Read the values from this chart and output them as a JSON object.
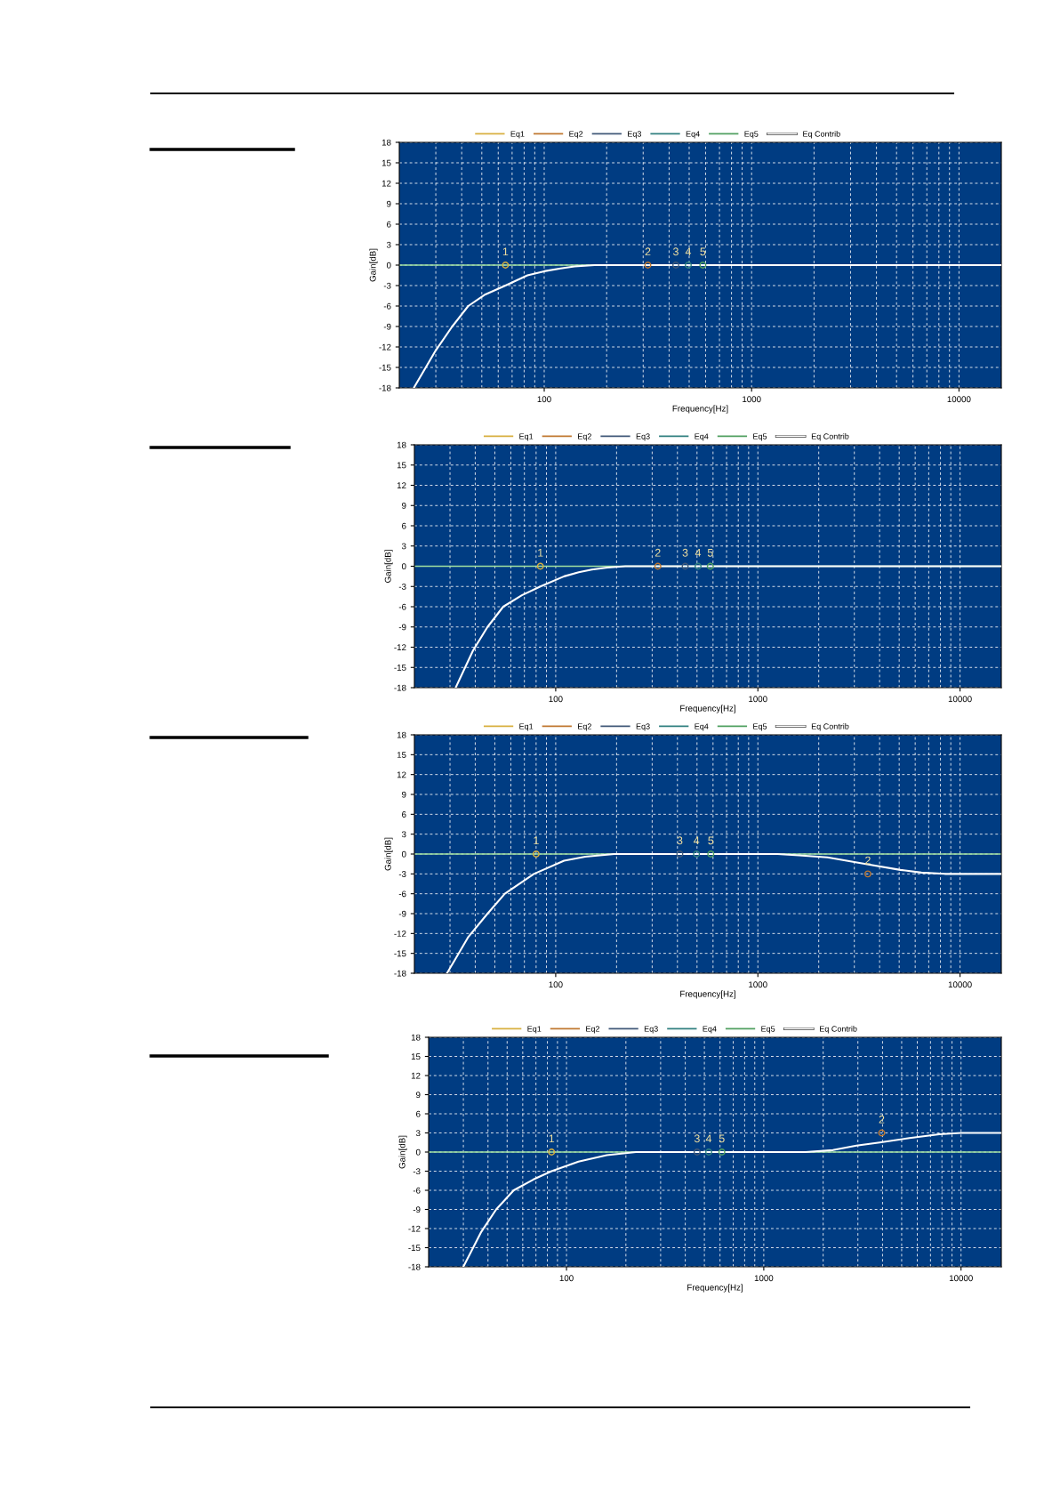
{
  "chart_data": [
    {
      "type": "line",
      "xlabel": "Frequency[Hz]",
      "ylabel": "Gain[dB]",
      "xlim": [
        20,
        16000
      ],
      "ylim": [
        -18,
        18
      ],
      "xticks": [
        100,
        1000,
        10000
      ],
      "yticks": [
        -18,
        -15,
        -12,
        -9,
        -6,
        -3,
        0,
        3,
        6,
        9,
        12,
        15,
        18
      ],
      "log": "x",
      "grid": true,
      "legend": "top",
      "ref_lines": [
        {
          "axis": "y",
          "value": 0,
          "color": "#a0e0a0"
        }
      ],
      "series": [
        {
          "name": "Eq1",
          "type": "scatter",
          "marker": "circle",
          "color": "#d8b040",
          "x": [
            65
          ],
          "values": [
            0
          ]
        },
        {
          "name": "Eq2",
          "type": "scatter",
          "marker": "circle",
          "color": "#c07830",
          "x": [
            316
          ],
          "values": [
            0
          ]
        },
        {
          "name": "Eq3",
          "type": "scatter",
          "marker": "circle",
          "color": "#405878",
          "x": [
            431
          ],
          "values": [
            0
          ]
        },
        {
          "name": "Eq4",
          "type": "scatter",
          "marker": "circle",
          "color": "#308080",
          "x": [
            495
          ],
          "values": [
            0
          ]
        },
        {
          "name": "Eq5",
          "type": "scatter",
          "marker": "circle",
          "color": "#50a060",
          "x": [
            582
          ],
          "values": [
            0
          ]
        },
        {
          "name": "Eq Contrib",
          "color": "#ffffff",
          "x": [
            23.5,
            30,
            36,
            43,
            52,
            65,
            83,
            100,
            120,
            140,
            175,
            1000,
            16000
          ],
          "values": [
            -18,
            -12.5,
            -9,
            -6,
            -4.3,
            -3,
            -1.5,
            -0.9,
            -0.5,
            -0.2,
            0,
            0,
            0
          ]
        }
      ],
      "annotations": [
        {
          "text": "1",
          "x": 65,
          "y": 0
        },
        {
          "text": "2",
          "x": 316,
          "y": 0
        },
        {
          "text": "3",
          "x": 431,
          "y": 0
        },
        {
          "text": "4",
          "x": 495,
          "y": 0
        },
        {
          "text": "5",
          "x": 582,
          "y": 0
        }
      ]
    },
    {
      "type": "line",
      "xlabel": "Frequency[Hz]",
      "ylabel": "Gain[dB]",
      "xlim": [
        20,
        16000
      ],
      "ylim": [
        -18,
        18
      ],
      "xticks": [
        100,
        1000,
        10000
      ],
      "yticks": [
        -18,
        -15,
        -12,
        -9,
        -6,
        -3,
        0,
        3,
        6,
        9,
        12,
        15,
        18
      ],
      "log": "x",
      "grid": true,
      "legend": "top",
      "ref_lines": [
        {
          "axis": "y",
          "value": 0,
          "color": "#a0e0a0"
        }
      ],
      "series": [
        {
          "name": "Eq1",
          "type": "scatter",
          "marker": "circle",
          "color": "#d8b040",
          "x": [
            84
          ],
          "values": [
            0
          ]
        },
        {
          "name": "Eq2",
          "type": "scatter",
          "marker": "circle",
          "color": "#c07830",
          "x": [
            320
          ],
          "values": [
            0
          ]
        },
        {
          "name": "Eq3",
          "type": "scatter",
          "marker": "circle",
          "color": "#405878",
          "x": [
            437
          ],
          "values": [
            0
          ]
        },
        {
          "name": "Eq4",
          "type": "scatter",
          "marker": "circle",
          "color": "#308080",
          "x": [
            506
          ],
          "values": [
            0
          ]
        },
        {
          "name": "Eq5",
          "type": "scatter",
          "marker": "circle",
          "color": "#50a060",
          "x": [
            582
          ],
          "values": [
            0
          ]
        },
        {
          "name": "Eq Contrib",
          "color": "#ffffff",
          "x": [
            32,
            39,
            46,
            55,
            68,
            84,
            110,
            130,
            151,
            180,
            221,
            1000,
            16000
          ],
          "values": [
            -18,
            -12.5,
            -9,
            -6,
            -4.3,
            -3,
            -1.5,
            -0.9,
            -0.5,
            -0.2,
            0,
            0,
            0
          ]
        }
      ],
      "annotations": [
        {
          "text": "1",
          "x": 84,
          "y": 0
        },
        {
          "text": "2",
          "x": 320,
          "y": 0
        },
        {
          "text": "3",
          "x": 437,
          "y": 0
        },
        {
          "text": "4",
          "x": 506,
          "y": 0
        },
        {
          "text": "5",
          "x": 582,
          "y": 0
        }
      ]
    },
    {
      "type": "line",
      "xlabel": "Frequency[Hz]",
      "ylabel": "Gain[dB]",
      "xlim": [
        20,
        16000
      ],
      "ylim": [
        -18,
        18
      ],
      "xticks": [
        100,
        1000,
        10000
      ],
      "yticks": [
        -18,
        -15,
        -12,
        -9,
        -6,
        -3,
        0,
        3,
        6,
        9,
        12,
        15,
        18
      ],
      "log": "x",
      "grid": true,
      "legend": "top",
      "ref_lines": [
        {
          "axis": "y",
          "value": 0,
          "color": "#a0e0a0"
        }
      ],
      "series": [
        {
          "name": "Eq1",
          "type": "scatter",
          "marker": "circle",
          "color": "#d8b040",
          "x": [
            80
          ],
          "values": [
            0
          ]
        },
        {
          "name": "Eq2",
          "type": "scatter",
          "marker": "circle",
          "color": "#c07830",
          "x": [
            3500
          ],
          "values": [
            -3
          ]
        },
        {
          "name": "Eq3",
          "type": "scatter",
          "marker": "circle",
          "color": "#405878",
          "x": [
            411
          ],
          "values": [
            0
          ]
        },
        {
          "name": "Eq4",
          "type": "scatter",
          "marker": "circle",
          "color": "#308080",
          "x": [
            497
          ],
          "values": [
            0
          ]
        },
        {
          "name": "Eq5",
          "type": "scatter",
          "marker": "circle",
          "color": "#50a060",
          "x": [
            585
          ],
          "values": [
            0
          ]
        },
        {
          "name": "Eq Contrib",
          "color": "#ffffff",
          "x": [
            29,
            37,
            46,
            56,
            78,
            110,
            140,
            195,
            1250,
            1600,
            2210,
            3420,
            5070,
            6440,
            8400,
            16000
          ],
          "values": [
            -18,
            -12.5,
            -9,
            -6,
            -3,
            -1,
            -0.4,
            0,
            0,
            -0.2,
            -0.5,
            -1.5,
            -2.4,
            -2.8,
            -3,
            -3
          ]
        }
      ],
      "annotations": [
        {
          "text": "1",
          "x": 80,
          "y": 0
        },
        {
          "text": "2",
          "x": 3500,
          "y": -3
        },
        {
          "text": "3",
          "x": 411,
          "y": 0
        },
        {
          "text": "4",
          "x": 497,
          "y": 0
        },
        {
          "text": "5",
          "x": 585,
          "y": 0
        }
      ]
    },
    {
      "type": "line",
      "xlabel": "Frequency[Hz]",
      "ylabel": "Gain[dB]",
      "xlim": [
        20,
        16000
      ],
      "ylim": [
        -18,
        18
      ],
      "xticks": [
        100,
        1000,
        10000
      ],
      "yticks": [
        -18,
        -15,
        -12,
        -9,
        -6,
        -3,
        0,
        3,
        6,
        9,
        12,
        15,
        18
      ],
      "log": "x",
      "grid": true,
      "legend": "top",
      "ref_lines": [
        {
          "axis": "y",
          "value": 0,
          "color": "#a0e0a0"
        }
      ],
      "series": [
        {
          "name": "Eq1",
          "type": "scatter",
          "marker": "circle",
          "color": "#d8b040",
          "x": [
            84
          ],
          "values": [
            0
          ]
        },
        {
          "name": "Eq2",
          "type": "scatter",
          "marker": "circle",
          "color": "#c07830",
          "x": [
            3960
          ],
          "values": [
            3
          ]
        },
        {
          "name": "Eq3",
          "type": "scatter",
          "marker": "circle",
          "color": "#405878",
          "x": [
            459
          ],
          "values": [
            0
          ]
        },
        {
          "name": "Eq4",
          "type": "scatter",
          "marker": "circle",
          "color": "#308080",
          "x": [
            526
          ],
          "values": [
            0
          ]
        },
        {
          "name": "Eq5",
          "type": "scatter",
          "marker": "circle",
          "color": "#50a060",
          "x": [
            613
          ],
          "values": [
            0
          ]
        },
        {
          "name": "Eq Contrib",
          "color": "#ffffff",
          "x": [
            30,
            37,
            44,
            54,
            68,
            84,
            115,
            160,
            225,
            1630,
            2240,
            2950,
            3870,
            5480,
            7760,
            10000,
            16000
          ],
          "values": [
            -18,
            -12.5,
            -9,
            -6,
            -4.3,
            -3,
            -1.5,
            -0.5,
            0,
            0,
            0.3,
            1,
            1.5,
            2.2,
            2.8,
            3,
            3
          ]
        }
      ],
      "annotations": [
        {
          "text": "1",
          "x": 84,
          "y": 0
        },
        {
          "text": "2",
          "x": 3960,
          "y": 3
        },
        {
          "text": "3",
          "x": 459,
          "y": 0
        },
        {
          "text": "4",
          "x": 526,
          "y": 0
        },
        {
          "text": "5",
          "x": 613,
          "y": 0
        }
      ]
    }
  ]
}
